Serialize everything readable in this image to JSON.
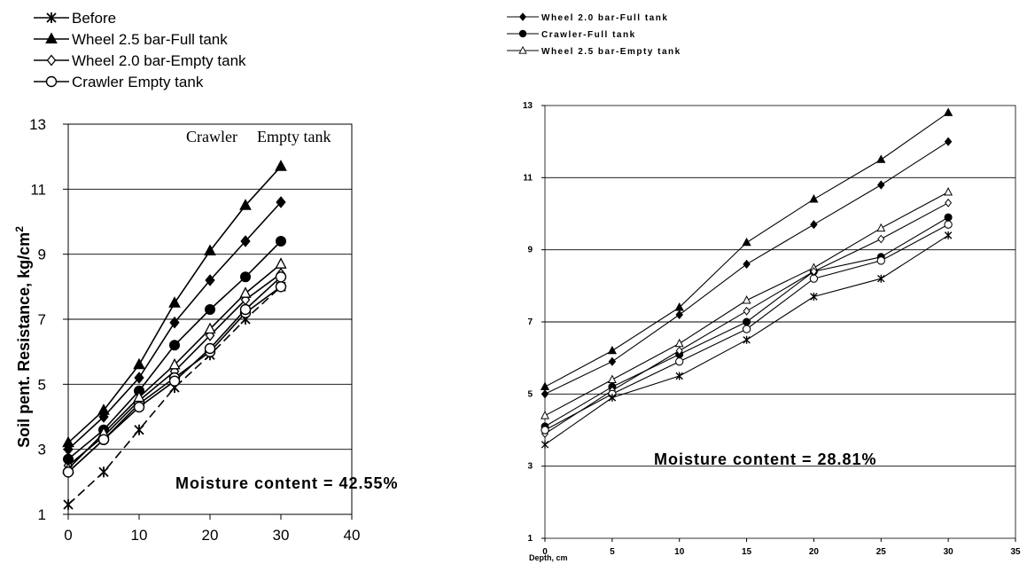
{
  "chart_data": [
    {
      "type": "line",
      "title": "",
      "xlabel": "",
      "ylabel": "Soil pent. Resistance, kg/cm",
      "ylabel_sup": "2",
      "xlim": [
        0,
        40
      ],
      "ylim": [
        1,
        13
      ],
      "xticks": [
        0,
        10,
        20,
        30,
        40
      ],
      "yticks": [
        1,
        3,
        5,
        7,
        9,
        11,
        13
      ],
      "grid": "horizontal",
      "legend_position": "top-left, outside plot",
      "annotation": "Moisture content = 42.55%",
      "overlay_label": [
        "Crawler",
        "Empty tank"
      ],
      "x": [
        0,
        5,
        10,
        15,
        20,
        25,
        30
      ],
      "series": [
        {
          "name": "Before",
          "marker": "x",
          "values": [
            1.3,
            2.3,
            3.6,
            4.9,
            5.9,
            7.0,
            8.0
          ]
        },
        {
          "name": "Wheel 2.5 bar-Full tank",
          "marker": "triangle",
          "values": [
            3.2,
            4.2,
            5.6,
            7.5,
            9.1,
            10.5,
            11.7
          ]
        },
        {
          "name": "Wheel 2.0 bar-Empty tank",
          "marker": "diamond-open",
          "values": [
            2.5,
            3.4,
            4.5,
            5.4,
            6.5,
            7.6,
            8.4
          ]
        },
        {
          "name": "Crawler Empty tank",
          "marker": "circle-open",
          "values": [
            2.3,
            3.3,
            4.4,
            5.2,
            6.0,
            7.2,
            8.0
          ]
        },
        {
          "name": "",
          "marker": "diamond",
          "values": [
            3.0,
            4.0,
            5.2,
            6.9,
            8.2,
            9.4,
            10.6
          ]
        },
        {
          "name": "",
          "marker": "circle",
          "values": [
            2.7,
            3.6,
            4.8,
            6.2,
            7.3,
            8.3,
            9.4
          ]
        },
        {
          "name": "",
          "marker": "triangle-open",
          "values": [
            2.4,
            3.5,
            4.6,
            5.6,
            6.7,
            7.8,
            8.7
          ]
        },
        {
          "name": "",
          "marker": "circle-open",
          "values": [
            2.3,
            3.3,
            4.3,
            5.1,
            6.1,
            7.3,
            8.3
          ]
        }
      ]
    },
    {
      "type": "line",
      "title": "",
      "xlabel": "Depth, cm",
      "ylabel": "",
      "xlim": [
        0,
        35
      ],
      "ylim": [
        1,
        13
      ],
      "xticks": [
        0,
        5,
        10,
        15,
        20,
        25,
        30,
        35
      ],
      "yticks": [
        1,
        3,
        5,
        7,
        9,
        11,
        13
      ],
      "grid": "horizontal",
      "legend_position": "top-left, outside plot",
      "annotation": "Moisture content = 28.81%",
      "x": [
        0,
        5,
        10,
        15,
        20,
        25,
        30
      ],
      "series": [
        {
          "name": "Wheel 2.0 bar-Full tank",
          "marker": "diamond",
          "values": [
            5.0,
            5.9,
            7.2,
            8.6,
            9.7,
            10.8,
            12.0
          ]
        },
        {
          "name": "Crawler-Full tank",
          "marker": "circle",
          "values": [
            4.1,
            5.2,
            6.1,
            7.0,
            8.4,
            8.8,
            9.9
          ]
        },
        {
          "name": "Wheel 2.5 bar-Empty tank",
          "marker": "triangle-open",
          "values": [
            4.4,
            5.4,
            6.4,
            7.6,
            8.5,
            9.6,
            10.6
          ]
        },
        {
          "name": "",
          "marker": "triangle",
          "values": [
            5.2,
            6.2,
            7.4,
            9.2,
            10.4,
            11.5,
            12.8
          ]
        },
        {
          "name": "",
          "marker": "diamond-open",
          "values": [
            3.9,
            5.1,
            6.2,
            7.3,
            8.4,
            9.3,
            10.3
          ]
        },
        {
          "name": "",
          "marker": "circle-open",
          "values": [
            4.0,
            5.0,
            5.9,
            6.8,
            8.2,
            8.7,
            9.7
          ]
        },
        {
          "name": "",
          "marker": "x",
          "values": [
            3.6,
            4.9,
            5.5,
            6.5,
            7.7,
            8.2,
            9.4
          ]
        }
      ]
    }
  ]
}
